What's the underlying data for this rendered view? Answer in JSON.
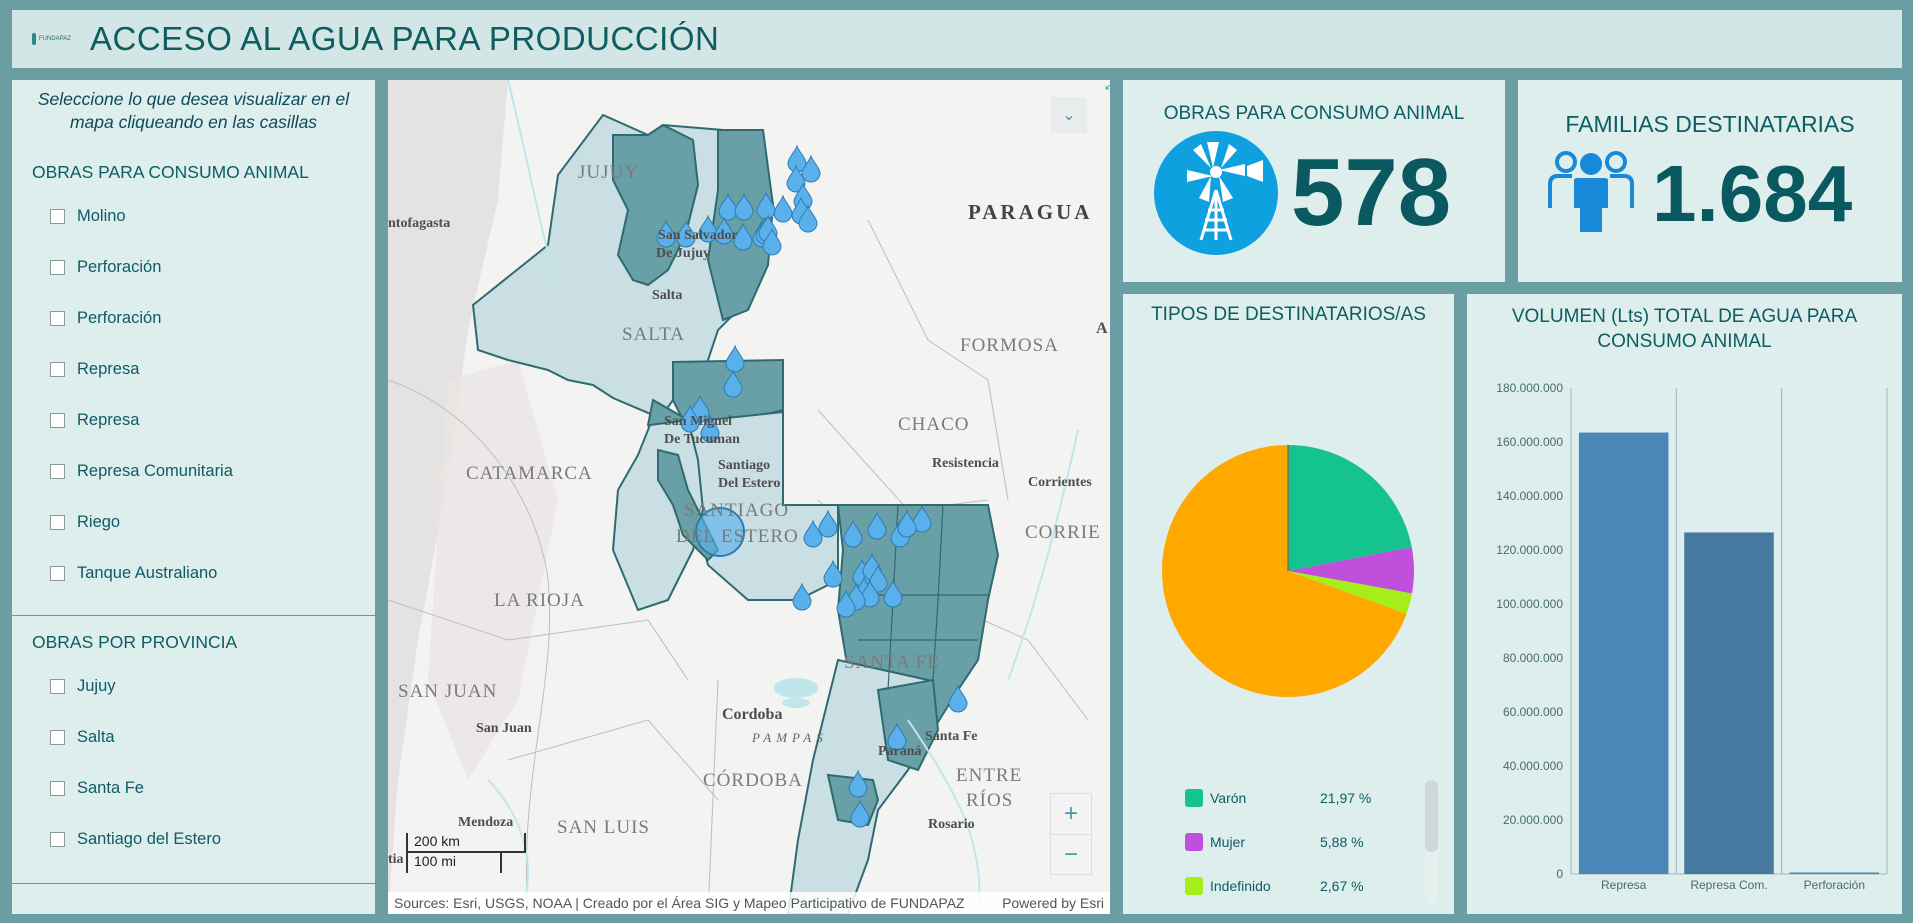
{
  "header": {
    "title": "ACCESO AL AGUA PARA PRODUCCIÓN",
    "logo_text": "FUNDAPAZ"
  },
  "sidebar": {
    "instruction": "Seleccione lo que desea visualizar en el mapa cliqueando en las casillas",
    "section1": {
      "title": "OBRAS PARA CONSUMO ANIMAL",
      "items": [
        "Molino",
        "Perforación",
        "Perforación",
        "Represa",
        "Represa",
        "Represa Comunitaria",
        "Riego",
        "Tanque Australiano"
      ]
    },
    "section2": {
      "title": "OBRAS POR PROVINCIA",
      "items": [
        "Jujuy",
        "Salta",
        "Santa Fe",
        "Santiago del Estero"
      ]
    }
  },
  "map": {
    "labels": {
      "jujuy": "JUJUY",
      "salta": "SALTA",
      "formosa": "FORMOSA",
      "chaco": "CHACO",
      "catamarca": "CATAMARCA",
      "santiago": "SANTIAGO",
      "del_estero": "DEL ESTERO",
      "la_rioja": "LA RIOJA",
      "san_juan": "SAN JUAN",
      "san_luis": "SAN LUIS",
      "cordoba": "CÓRDOBA",
      "entre": "ENTRE",
      "rios": "RÍOS",
      "santa_fe": "SANTA FE",
      "corrientes": "CORRIE",
      "paraguay": "PARAGUA",
      "pampas": "PAMPAS"
    },
    "cities": {
      "antofagasta": "ntofagasta",
      "ss_jujuy1": "San Salvador",
      "ss_jujuy2": "De Jujuy",
      "salta_city": "Salta",
      "smt1": "San Miguel",
      "smt2": "De Tucuman",
      "sde1": "Santiago",
      "sde2": "Del Estero",
      "resistencia": "Resistencia",
      "corrientes_city": "Corrientes",
      "cordoba_city": "Cordoba",
      "san_juan_city": "San Juan",
      "mendoza": "Mendoza",
      "parana": "Paraná",
      "santa_fe_city": "Santa Fe",
      "rosario": "Rosario",
      "a_char": "A",
      "tia": "tia"
    },
    "scale": {
      "km": "200 km",
      "mi": "100 mi"
    },
    "attribution": "Sources: Esri, USGS, NOAA | Creado por el Área SIG y Mapeo Participativo de FUNDAPAZ",
    "powered_by": "Powered by Esri",
    "zoom_in": "+",
    "zoom_out": "−",
    "icons": {
      "collapse": "chevrons-down-icon",
      "fullscreen": "fullscreen-icon"
    }
  },
  "kpi_obras": {
    "title": "OBRAS PARA CONSUMO ANIMAL",
    "value": "578",
    "icon": "windmill-icon",
    "icon_color": "#0fa0e0"
  },
  "kpi_familias": {
    "title": "FAMILIAS DESTINATARIAS",
    "value": "1.684",
    "icon": "people-group-icon",
    "icon_color": "#1789d8"
  },
  "pie": {
    "title": "TIPOS DE DESTINATARIOS/AS",
    "legend": [
      {
        "name": "Varón",
        "pct": "21,97 %",
        "color": "#14c38e"
      },
      {
        "name": "Mujer",
        "pct": "5,88 %",
        "color": "#c04fdb"
      },
      {
        "name": "Indefinido",
        "pct": "2,67 %",
        "color": "#a6ee1a"
      }
    ]
  },
  "chart_data": [
    {
      "type": "pie",
      "title": "TIPOS DE DESTINATARIOS/AS",
      "slices": [
        {
          "name": "Varón",
          "value": 21.97,
          "color": "#14c38e"
        },
        {
          "name": "Mujer",
          "value": 5.88,
          "color": "#c04fdb"
        },
        {
          "name": "Indefinido",
          "value": 2.67,
          "color": "#a6ee1a"
        },
        {
          "value": 69.48,
          "color": "#ffa800"
        }
      ]
    },
    {
      "type": "bar",
      "title": "VOLUMEN (Lts) TOTAL DE AGUA PARA CONSUMO ANIMAL",
      "categories": [
        "Represa",
        "Represa Com.",
        "Perforación"
      ],
      "values": [
        163500000,
        126500000,
        300000
      ],
      "colors": [
        "#4a87b8",
        "#47789f",
        "#4a87b8"
      ],
      "ylim": [
        0,
        180000000
      ],
      "yticks": [
        "0",
        "20.000.000",
        "40.000.000",
        "60.000.000",
        "80.000.000",
        "100.000.000",
        "120.000.000",
        "140.000.000",
        "160.000.000",
        "180.000.000"
      ],
      "grid": false
    }
  ]
}
